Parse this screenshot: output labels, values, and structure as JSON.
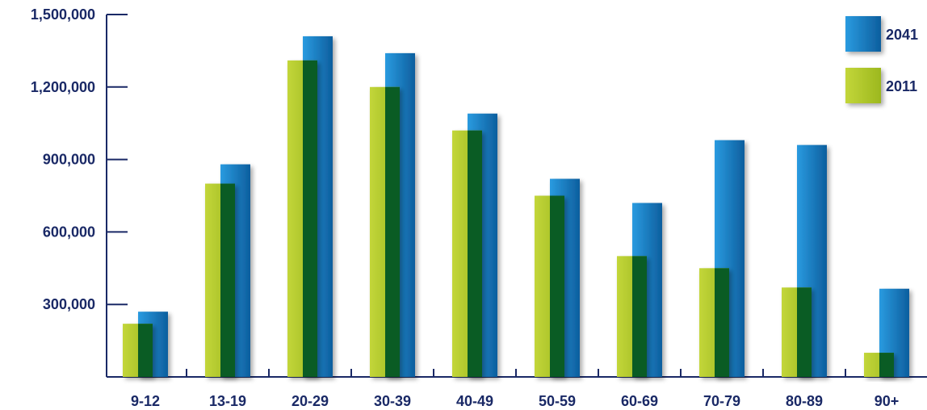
{
  "chart_data": {
    "type": "bar",
    "title": "",
    "xlabel": "",
    "ylabel": "",
    "categories": [
      "9-12",
      "13-19",
      "20-29",
      "30-39",
      "40-49",
      "50-59",
      "60-69",
      "70-79",
      "80-89",
      "90+"
    ],
    "yticks": [
      300000,
      600000,
      900000,
      1200000,
      1500000
    ],
    "ytick_labels": [
      "300,000",
      "600,000",
      "900,000",
      "1,200,000",
      "1,500,000"
    ],
    "ylim": [
      0,
      1500000
    ],
    "grid": false,
    "legend_position": "top-right",
    "series": [
      {
        "name": "2011",
        "values": [
          220000,
          800000,
          1310000,
          1200000,
          1020000,
          750000,
          500000,
          450000,
          370000,
          100000
        ]
      },
      {
        "name": "2041",
        "values": [
          270000,
          880000,
          1410000,
          1340000,
          1090000,
          820000,
          720000,
          980000,
          960000,
          365000
        ]
      }
    ]
  },
  "colors": {
    "series_2011_light": "#b5cc2e",
    "series_2011_dark": "#0a5c24",
    "series_2041_light": "#1889d3",
    "series_2041_dark": "#0e5d9c",
    "axis": "#1a2966",
    "text": "#1a2966"
  },
  "legend": {
    "entries": [
      {
        "label": "2041",
        "series": "2041"
      },
      {
        "label": "2011",
        "series": "2011"
      }
    ]
  }
}
